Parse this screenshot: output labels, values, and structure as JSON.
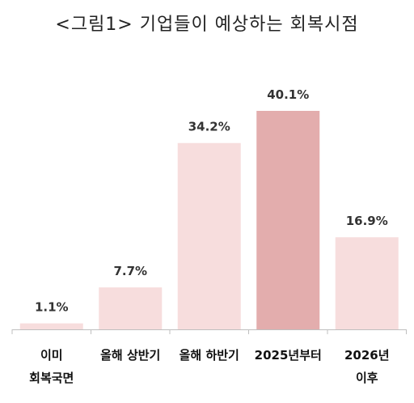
{
  "chart_data": {
    "type": "bar",
    "title": "<그림1> 기업들이 예상하는 회복시점",
    "categories": [
      [
        "이미",
        "회복국면"
      ],
      [
        "올해 상반기"
      ],
      [
        "올해 하반기"
      ],
      [
        "2025년부터"
      ],
      [
        "2026년",
        "이후"
      ]
    ],
    "values": [
      1.1,
      7.7,
      34.2,
      40.1,
      16.9
    ],
    "value_labels": [
      "1.1%",
      "7.7%",
      "34.2%",
      "40.1%",
      "16.9%"
    ],
    "ylim": [
      0,
      40.1
    ],
    "colors": {
      "bar": "#f7dddd",
      "highlight": "#e3adad",
      "axis": "#bfbfbf"
    },
    "highlight_index": 3
  }
}
